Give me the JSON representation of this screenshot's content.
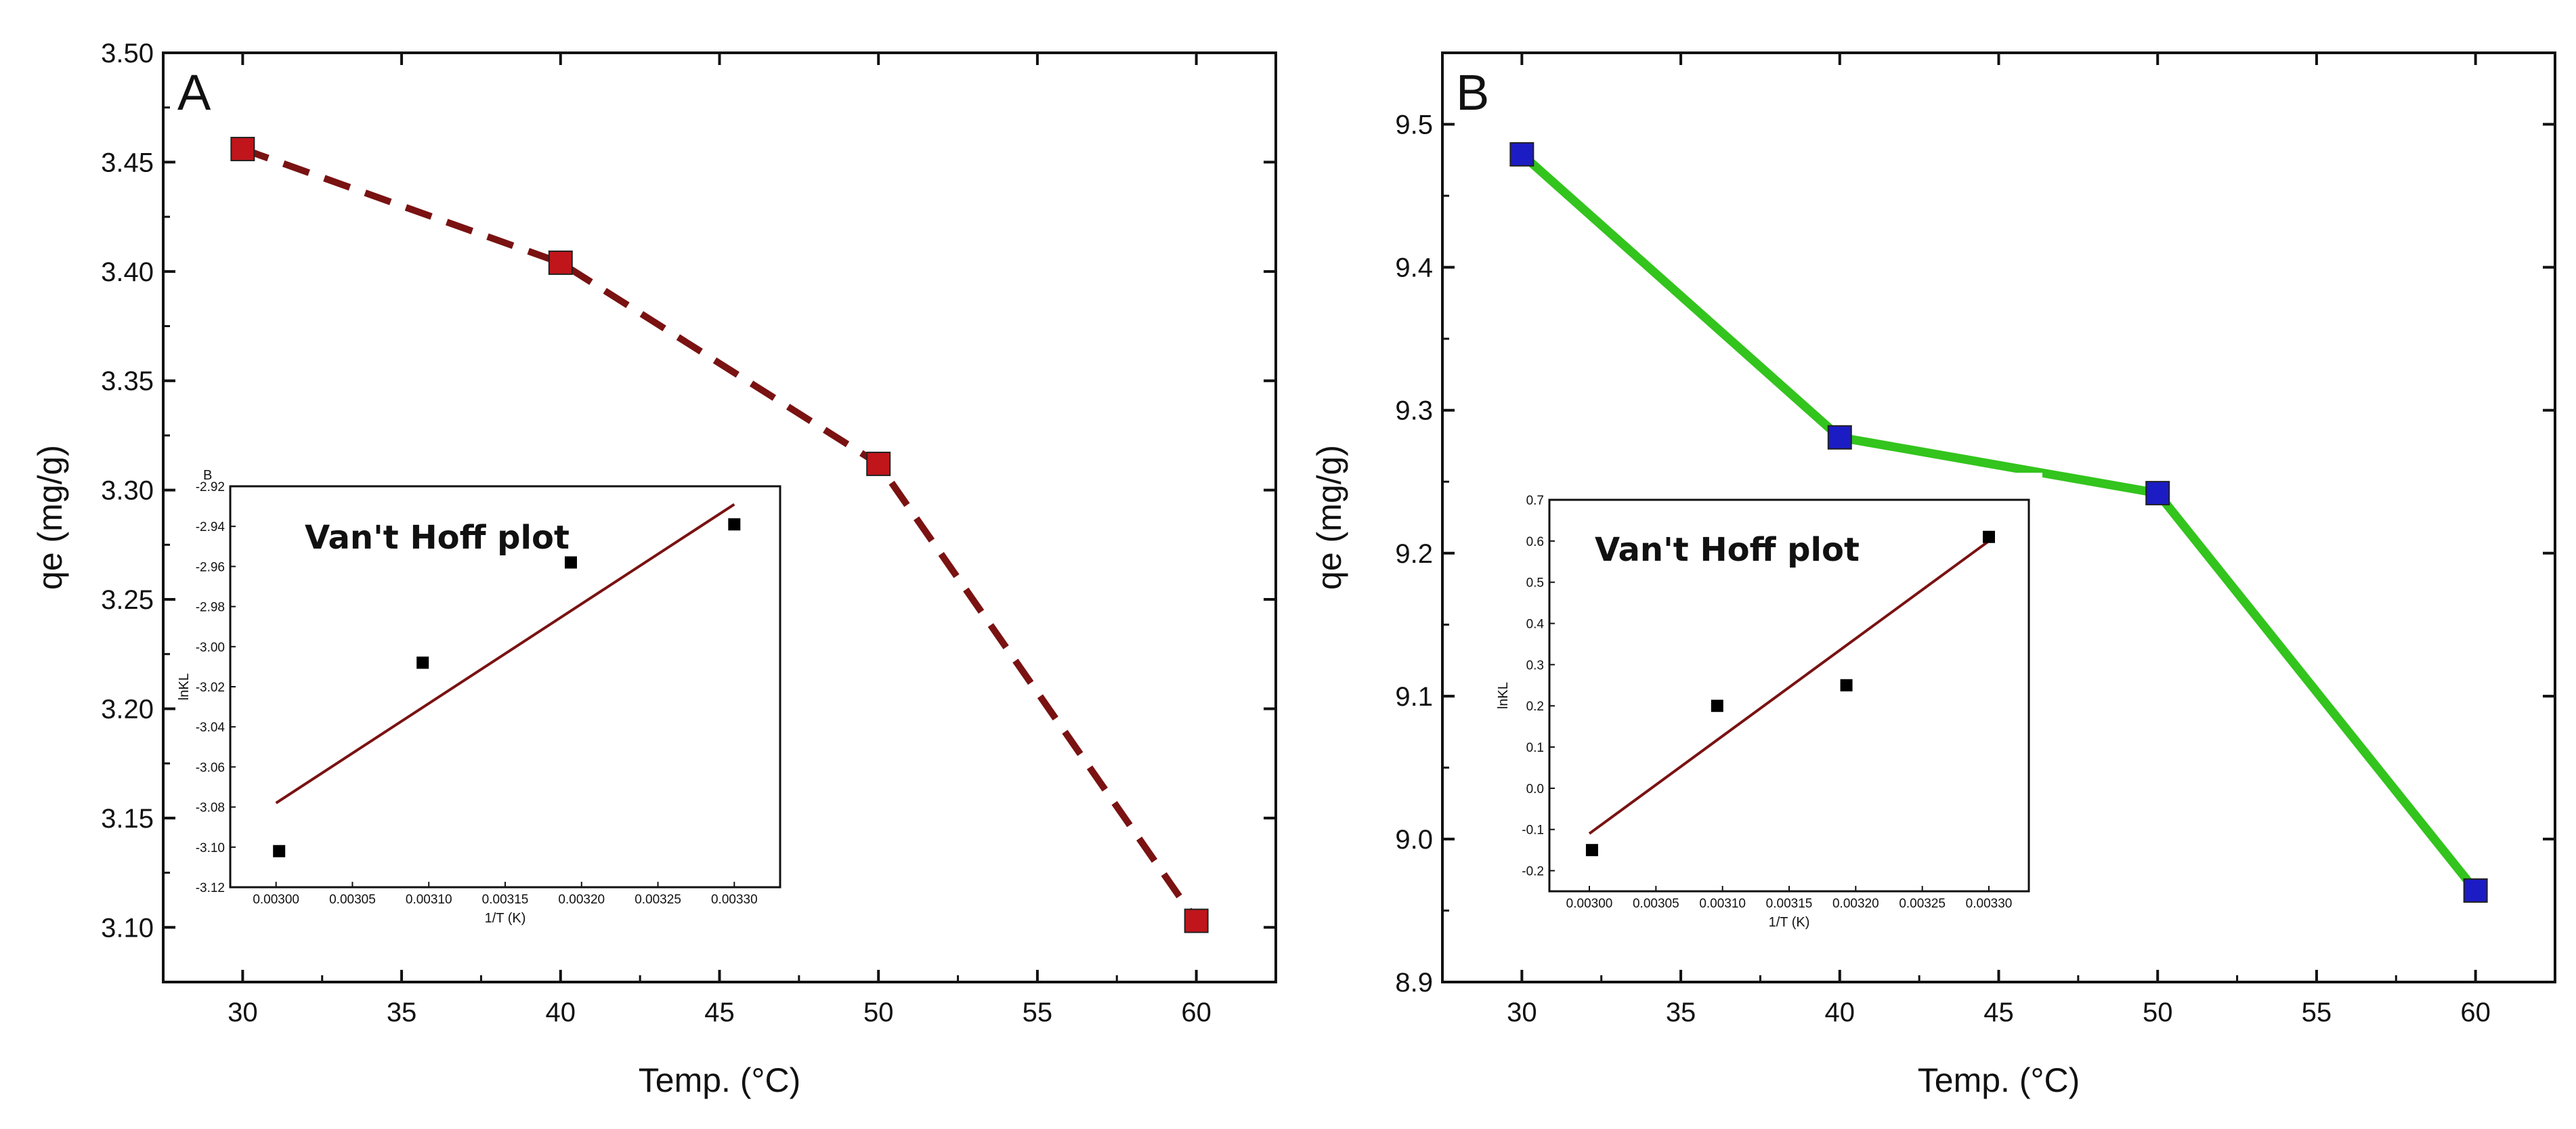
{
  "chart_data": [
    {
      "panel": "A",
      "type": "line",
      "line_style": "dashed",
      "line_color": "#7a1212",
      "marker_color": "#c0151b",
      "xlabel": "Temp. (°C)",
      "ylabel": "qe (mg/g)",
      "xlim": [
        27.5,
        62.5
      ],
      "ylim": [
        3.075,
        3.5
      ],
      "xticks": [
        30,
        35,
        40,
        45,
        50,
        55,
        60
      ],
      "yticks": [
        "3.10",
        "3.15",
        "3.20",
        "3.25",
        "3.30",
        "3.35",
        "3.40",
        "3.45",
        "3.50"
      ],
      "series": [
        {
          "name": "qe",
          "x": [
            30,
            40,
            50,
            60
          ],
          "y": [
            3.456,
            3.404,
            3.312,
            3.103
          ]
        }
      ],
      "inset": {
        "title": "Van't Hoff plot",
        "corner_label": "B",
        "type": "scatter",
        "fit_color": "#7a1212",
        "xlabel": "1/T (K)",
        "ylabel": "lnKL",
        "xlim": [
          0.00297,
          0.00333
        ],
        "ylim": [
          -3.12,
          -2.92
        ],
        "xticks": [
          "0.00300",
          "0.00305",
          "0.00310",
          "0.00315",
          "0.00320",
          "0.00325",
          "0.00330"
        ],
        "yticks": [
          "-3.12",
          "-3.10",
          "-3.08",
          "-3.06",
          "-3.04",
          "-3.02",
          "-3.00",
          "-2.98",
          "-2.96",
          "-2.94",
          "-2.92"
        ],
        "points": {
          "x": [
            0.003002,
            0.003096,
            0.003193,
            0.0033
          ],
          "y": [
            -3.102,
            -3.008,
            -2.958,
            -2.939
          ]
        },
        "fit": {
          "x": [
            0.003,
            0.0033
          ],
          "y": [
            -3.078,
            -2.929
          ]
        }
      }
    },
    {
      "panel": "B",
      "type": "line",
      "line_style": "solid",
      "line_color": "#33c41d",
      "marker_color": "#1c1cc4",
      "xlabel": "Temp. (°C)",
      "ylabel": "qe (mg/g)",
      "xlim": [
        27.5,
        62.5
      ],
      "ylim": [
        8.9,
        9.55
      ],
      "xticks": [
        30,
        35,
        40,
        45,
        50,
        55,
        60
      ],
      "yticks": [
        "8.9",
        "9.0",
        "9.1",
        "9.2",
        "9.3",
        "9.4",
        "9.5"
      ],
      "series": [
        {
          "name": "qe",
          "x": [
            30,
            40,
            50,
            60
          ],
          "y": [
            9.479,
            9.281,
            9.242,
            8.964
          ]
        }
      ],
      "inset": {
        "title": "Van't Hoff plot",
        "type": "scatter",
        "fit_color": "#7a1212",
        "xlabel": "1/T (K)",
        "ylabel": "lnKL",
        "xlim": [
          0.00297,
          0.00333
        ],
        "ylim": [
          -0.25,
          0.7
        ],
        "xticks": [
          "0.00300",
          "0.00305",
          "0.00310",
          "0.00315",
          "0.00320",
          "0.00325",
          "0.00330"
        ],
        "yticks": [
          "-0.2",
          "-0.1",
          "0.0",
          "0.1",
          "0.2",
          "0.3",
          "0.4",
          "0.5",
          "0.6",
          "0.7"
        ],
        "points": {
          "x": [
            0.003002,
            0.003096,
            0.003193,
            0.0033
          ],
          "y": [
            -0.15,
            0.2,
            0.25,
            0.61
          ]
        },
        "fit": {
          "x": [
            0.003,
            0.0033
          ],
          "y": [
            -0.11,
            0.6
          ]
        }
      }
    }
  ]
}
